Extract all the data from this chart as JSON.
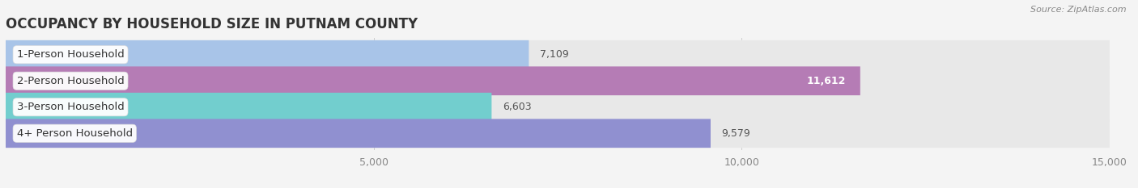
{
  "title": "OCCUPANCY BY HOUSEHOLD SIZE IN PUTNAM COUNTY",
  "source": "Source: ZipAtlas.com",
  "categories": [
    "1-Person Household",
    "2-Person Household",
    "3-Person Household",
    "4+ Person Household"
  ],
  "values": [
    7109,
    11612,
    6603,
    9579
  ],
  "bar_colors": [
    "#a8c4e8",
    "#b57cb5",
    "#72cece",
    "#9090d0"
  ],
  "bar_labels": [
    "7,109",
    "11,612",
    "6,603",
    "9,579"
  ],
  "label_colors": [
    "#555555",
    "#ffffff",
    "#555555",
    "#555555"
  ],
  "xlim": [
    0,
    15000
  ],
  "xticks": [
    5000,
    10000,
    15000
  ],
  "xtick_labels": [
    "5,000",
    "10,000",
    "15,000"
  ],
  "background_color": "#f4f4f4",
  "bar_background_color": "#e8e8e8",
  "title_fontsize": 12,
  "tick_fontsize": 9,
  "label_fontsize": 9,
  "category_fontsize": 9.5
}
